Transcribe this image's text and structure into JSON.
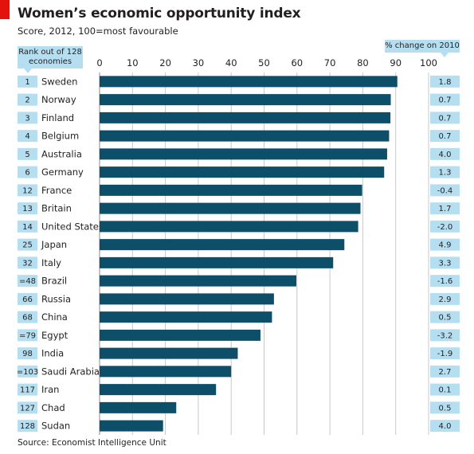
{
  "title": "Women’s economic opportunity index",
  "subtitle": "Score, 2012, 100=most favourable",
  "rank_label": "Rank out of 128 economies",
  "change_label": "% change on 2010",
  "source": "Source: Economist Intelligence Unit",
  "colors": {
    "bar": "#0d4f69",
    "grid": "#c9c9c9",
    "callout": "#b5dff0",
    "accent": "#e3120b"
  },
  "chart_data": {
    "type": "bar",
    "orientation": "horizontal",
    "title": "Women’s economic opportunity index",
    "subtitle": "Score, 2012, 100=most favourable",
    "xlim": [
      0,
      100
    ],
    "xticks": [
      0,
      10,
      20,
      30,
      40,
      50,
      60,
      70,
      80,
      90,
      100
    ],
    "grid": true,
    "categories": [
      "Sweden",
      "Norway",
      "Finland",
      "Belgium",
      "Australia",
      "Germany",
      "France",
      "Britain",
      "United States",
      "Japan",
      "Italy",
      "Brazil",
      "Russia",
      "China",
      "Egypt",
      "India",
      "Saudi Arabia",
      "Iran",
      "Chad",
      "Sudan"
    ],
    "ranks": [
      "1",
      "2",
      "3",
      "4",
      "5",
      "6",
      "12",
      "13",
      "14",
      "25",
      "32",
      "=48",
      "66",
      "68",
      "=79",
      "98",
      "=103",
      "117",
      "127",
      "128"
    ],
    "values": [
      90.5,
      88.5,
      88.4,
      88.0,
      87.4,
      86.5,
      79.8,
      79.3,
      78.6,
      74.4,
      71.0,
      59.8,
      53.0,
      52.4,
      48.9,
      42.0,
      40.0,
      35.4,
      23.3,
      19.3
    ],
    "change": [
      "1.8",
      "0.7",
      "0.7",
      "0.7",
      "4.0",
      "1.3",
      "-0.4",
      "1.7",
      "-2.0",
      "4.9",
      "3.3",
      "-1.6",
      "2.9",
      "0.5",
      "-3.2",
      "-1.9",
      "2.7",
      "0.1",
      "0.5",
      "4.0"
    ]
  }
}
